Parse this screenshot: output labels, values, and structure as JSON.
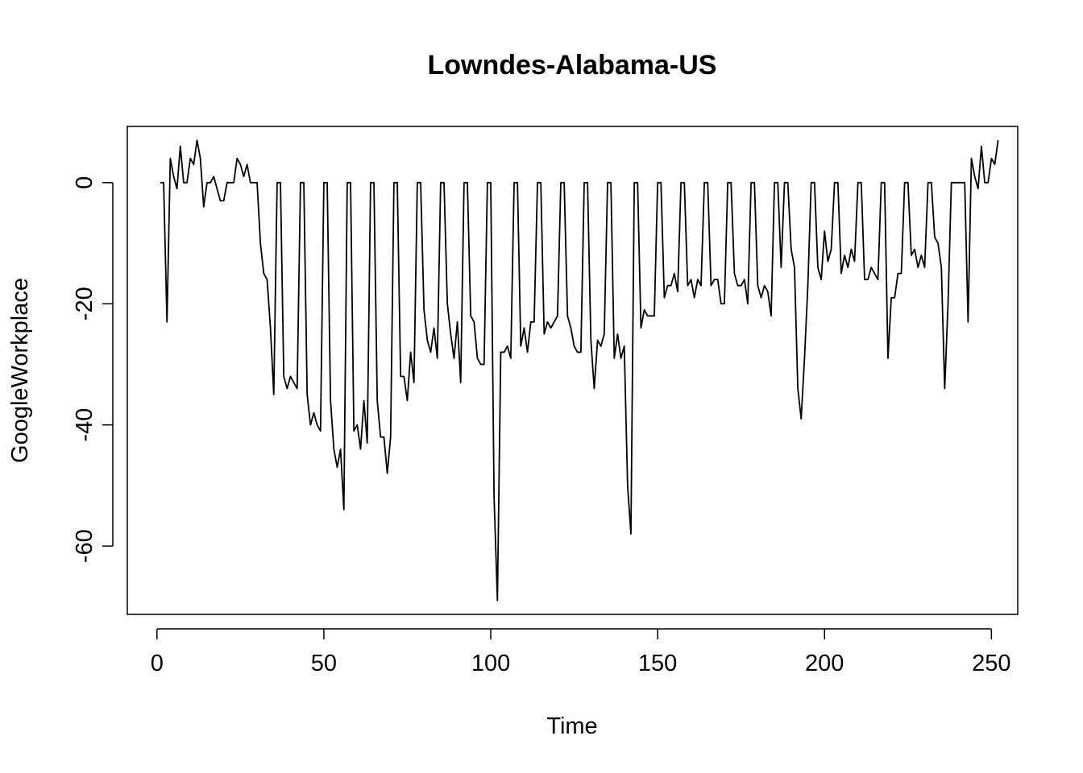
{
  "chart_data": {
    "type": "line",
    "title": "Lowndes-Alabama-US",
    "xlabel": "Time",
    "ylabel": "GoogleWorkplace",
    "xlim": [
      -8.88,
      257.88
    ],
    "ylim": [
      -71.28,
      9.28
    ],
    "x_ticks": [
      0,
      50,
      100,
      150,
      200,
      250
    ],
    "y_ticks": [
      0,
      -20,
      -40,
      -60
    ],
    "grid": false,
    "legend": "none",
    "color": "#000000",
    "x_start": 1,
    "series": [
      {
        "values": [
          0,
          0,
          -23,
          4,
          1,
          -1,
          6,
          0,
          0,
          4,
          3,
          7,
          4,
          -4,
          0,
          0,
          1,
          -1,
          -3,
          -3,
          0,
          0,
          0,
          4,
          3,
          1,
          3,
          0,
          0,
          0,
          -10,
          -15,
          -16,
          -24,
          -35,
          0,
          0,
          -32,
          -34,
          -32,
          -33,
          -34,
          0,
          0,
          -35,
          -40,
          -38,
          -40,
          -41,
          0,
          0,
          -36,
          -44,
          -47,
          -44,
          -54,
          0,
          0,
          -41,
          -40,
          -44,
          -36,
          -43,
          0,
          0,
          -36,
          -42,
          -42,
          -48,
          -42,
          0,
          0,
          -32,
          -32,
          -36,
          -28,
          -33,
          0,
          0,
          -21,
          -26,
          -28,
          -24,
          -29,
          0,
          0,
          -20,
          -25,
          -29,
          -23,
          -33,
          0,
          0,
          -22,
          -23,
          -29,
          -30,
          -30,
          0,
          0,
          -52,
          -69,
          -28,
          -28,
          -27,
          -29,
          0,
          0,
          -27,
          -24,
          -28,
          -23,
          -23,
          0,
          0,
          -25,
          -23,
          -24,
          -23,
          -22,
          0,
          0,
          -22,
          -24,
          -27,
          -28,
          -28,
          0,
          0,
          -26,
          -34,
          -26,
          -27,
          -25,
          0,
          0,
          -29,
          -25,
          -29,
          -27,
          -50,
          -58,
          0,
          0,
          -24,
          -21,
          -22,
          -22,
          -22,
          0,
          0,
          -19,
          -17,
          -17,
          -15,
          -18,
          0,
          0,
          -17,
          -16,
          -19,
          -16,
          -17,
          0,
          0,
          -17,
          -16,
          -16,
          -20,
          -20,
          0,
          0,
          -15,
          -17,
          -17,
          -16,
          -20,
          0,
          0,
          -17,
          -19,
          -17,
          -18,
          -22,
          0,
          0,
          -14,
          0,
          0,
          -11,
          -14,
          -34,
          -39,
          -29,
          -17,
          0,
          0,
          -14,
          -16,
          -8,
          -13,
          -11,
          0,
          0,
          -15,
          -12,
          -14,
          -11,
          -13,
          0,
          0,
          -16,
          -16,
          -14,
          -15,
          -16,
          0,
          0,
          -29,
          -19,
          -19,
          -15,
          -15,
          0,
          0,
          -12,
          -11,
          -14,
          -12,
          -14,
          0,
          0,
          -9,
          -10,
          -14,
          -34,
          -20,
          0,
          0,
          0,
          0,
          0,
          -23,
          4,
          1,
          -1,
          6,
          0,
          0,
          4,
          3,
          7
        ]
      }
    ]
  }
}
